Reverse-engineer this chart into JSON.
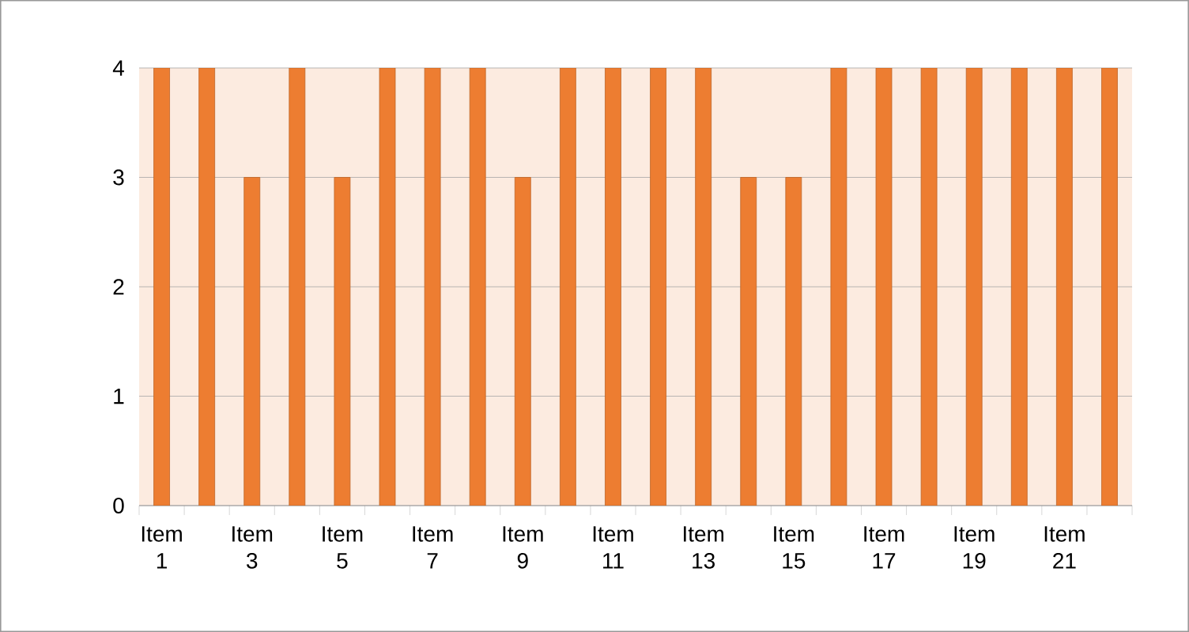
{
  "chart_data": {
    "type": "bar",
    "categories": [
      "Item 1",
      null,
      "Item 3",
      null,
      "Item 5",
      null,
      "Item 7",
      null,
      "Item 9",
      null,
      "Item 11",
      null,
      "Item 13",
      null,
      "Item 15",
      null,
      "Item 17",
      null,
      "Item 19",
      null,
      "Item 21",
      null
    ],
    "values": [
      4,
      4,
      3,
      4,
      3,
      4,
      4,
      4,
      3,
      4,
      4,
      4,
      4,
      3,
      3,
      4,
      4,
      4,
      4,
      4,
      4,
      4
    ],
    "color": "#ed7d31",
    "ylim": [
      0,
      4
    ],
    "yticks": [
      0,
      1,
      2,
      3,
      4
    ],
    "grid": "y"
  }
}
